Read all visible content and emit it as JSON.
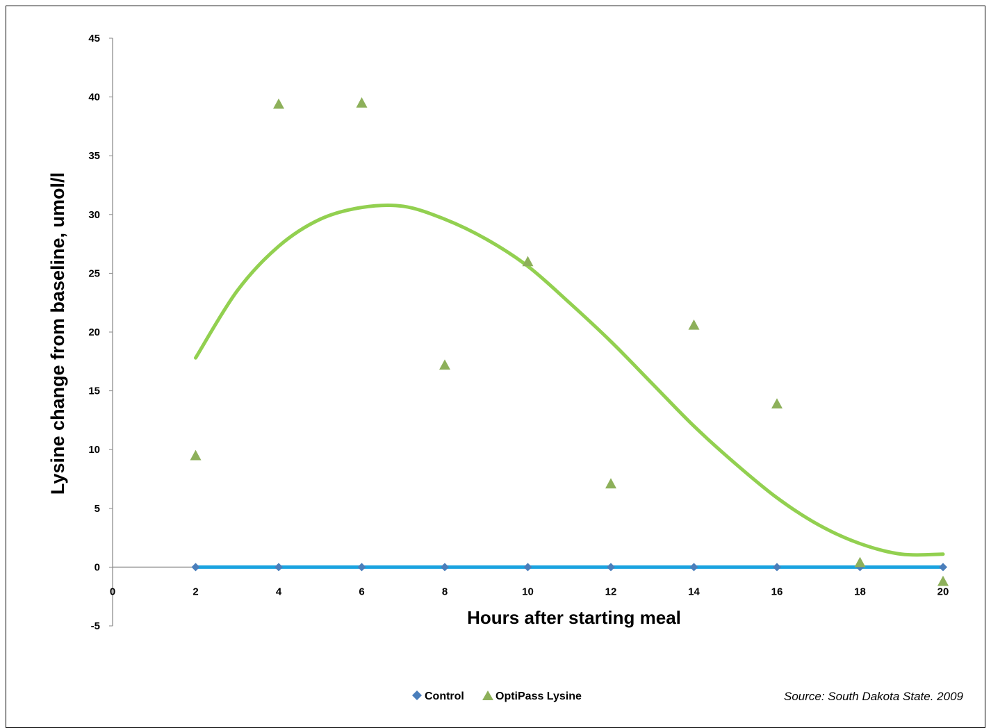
{
  "chart_data": {
    "type": "scatter",
    "xlabel": "Hours after starting meal",
    "ylabel": "Lysine change from baseline, umol/l",
    "xlim": [
      0,
      20
    ],
    "ylim": [
      -5,
      45
    ],
    "x_ticks": [
      0,
      2,
      4,
      6,
      8,
      10,
      12,
      14,
      16,
      18,
      20
    ],
    "y_ticks": [
      -5,
      0,
      5,
      10,
      15,
      20,
      25,
      30,
      35,
      40,
      45
    ],
    "grid": false,
    "legend_position": "bottom-center",
    "series": [
      {
        "name": "Control",
        "marker": "diamond",
        "color": "#4a7ebb",
        "line_color": "#1aa3e0",
        "x": [
          2,
          4,
          6,
          8,
          10,
          12,
          14,
          16,
          18,
          20
        ],
        "y": [
          0,
          0,
          0,
          0,
          0,
          0,
          0,
          0,
          0,
          0
        ]
      },
      {
        "name": "OptiPass Lysine",
        "marker": "triangle",
        "color": "#8db05a",
        "x": [
          2,
          4,
          6,
          8,
          10,
          12,
          14,
          16,
          18,
          20
        ],
        "y": [
          9.5,
          39.4,
          39.5,
          17.2,
          26.0,
          7.1,
          20.6,
          13.9,
          0.4,
          -1.2
        ]
      }
    ],
    "trendline": {
      "color": "#92d050",
      "x": [
        2,
        3,
        4,
        5,
        6,
        7,
        8,
        9,
        10,
        11,
        12,
        13,
        14,
        15,
        16,
        17,
        18,
        19,
        20
      ],
      "y": [
        17.8,
        23.5,
        27.3,
        29.6,
        30.6,
        30.7,
        29.6,
        27.9,
        25.6,
        22.5,
        19.2,
        15.6,
        12.0,
        8.8,
        5.9,
        3.6,
        2.0,
        1.1,
        1.1
      ]
    },
    "annotation": "Source: South Dakota State. 2009"
  }
}
